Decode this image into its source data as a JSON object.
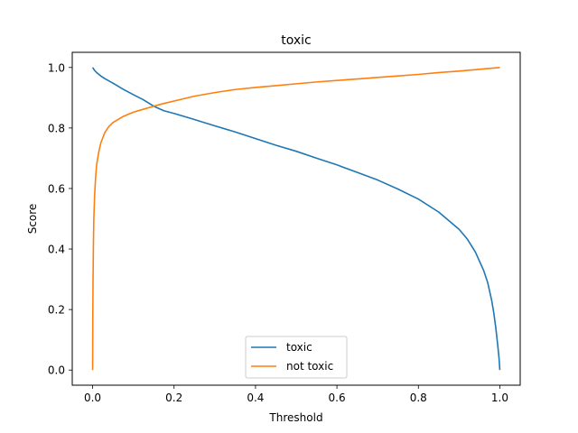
{
  "chart_data": {
    "type": "line",
    "title": "toxic",
    "xlabel": "Threshold",
    "ylabel": "Score",
    "xlim": [
      -0.05,
      1.05
    ],
    "ylim": [
      -0.05,
      1.05
    ],
    "xticks": [
      0.0,
      0.2,
      0.4,
      0.6,
      0.8,
      1.0
    ],
    "xtick_labels": [
      "0.0",
      "0.2",
      "0.4",
      "0.6",
      "0.8",
      "1.0"
    ],
    "yticks": [
      0.0,
      0.2,
      0.4,
      0.6,
      0.8,
      1.0
    ],
    "ytick_labels": [
      "0.0",
      "0.2",
      "0.4",
      "0.6",
      "0.8",
      "1.0"
    ],
    "grid": false,
    "legend_position": "lower-center",
    "series": [
      {
        "name": "toxic",
        "color": "#1f77b4",
        "x": [
          0.0,
          0.005,
          0.01,
          0.02,
          0.03,
          0.05,
          0.075,
          0.1,
          0.125,
          0.15,
          0.175,
          0.2,
          0.25,
          0.3,
          0.35,
          0.4,
          0.45,
          0.5,
          0.55,
          0.6,
          0.65,
          0.7,
          0.75,
          0.8,
          0.85,
          0.9,
          0.92,
          0.94,
          0.96,
          0.97,
          0.98,
          0.985,
          0.99,
          0.995,
          0.998,
          1.0
        ],
        "y": [
          1.0,
          0.99,
          0.983,
          0.972,
          0.963,
          0.948,
          0.928,
          0.91,
          0.893,
          0.872,
          0.857,
          0.848,
          0.828,
          0.807,
          0.787,
          0.765,
          0.743,
          0.723,
          0.7,
          0.678,
          0.653,
          0.628,
          0.598,
          0.565,
          0.522,
          0.465,
          0.433,
          0.39,
          0.33,
          0.29,
          0.23,
          0.19,
          0.14,
          0.08,
          0.04,
          0.0
        ]
      },
      {
        "name": "not toxic",
        "color": "#ff7f0e",
        "x": [
          0.0,
          0.0005,
          0.001,
          0.002,
          0.003,
          0.005,
          0.0075,
          0.01,
          0.015,
          0.02,
          0.03,
          0.04,
          0.05,
          0.075,
          0.1,
          0.125,
          0.15,
          0.175,
          0.2,
          0.25,
          0.3,
          0.35,
          0.4,
          0.45,
          0.5,
          0.55,
          0.6,
          0.65,
          0.7,
          0.75,
          0.8,
          0.85,
          0.9,
          0.95,
          1.0
        ],
        "y": [
          0.0,
          0.17,
          0.29,
          0.42,
          0.5,
          0.58,
          0.64,
          0.68,
          0.72,
          0.75,
          0.785,
          0.805,
          0.818,
          0.838,
          0.852,
          0.862,
          0.872,
          0.881,
          0.889,
          0.905,
          0.917,
          0.927,
          0.934,
          0.94,
          0.946,
          0.952,
          0.957,
          0.962,
          0.967,
          0.972,
          0.977,
          0.983,
          0.988,
          0.994,
          1.0
        ]
      }
    ]
  }
}
